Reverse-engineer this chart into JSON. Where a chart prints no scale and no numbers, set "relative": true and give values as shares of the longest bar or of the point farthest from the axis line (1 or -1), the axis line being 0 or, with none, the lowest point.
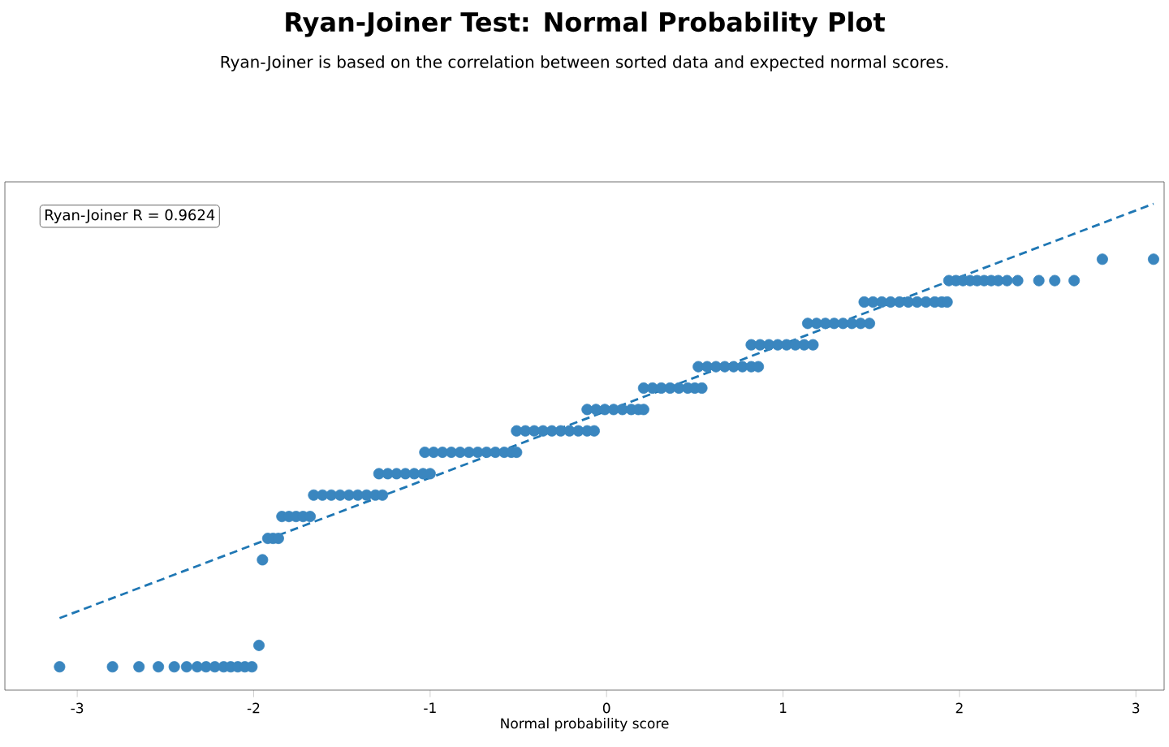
{
  "chart_data": {
    "type": "scatter",
    "title": "Ryan-Joiner Test: Normal Probability Plot",
    "subtitle": "Ryan-Joiner is based on the correlation between sorted data and expected normal scores.",
    "xlabel": "Normal probability score",
    "annotations": [
      "Ryan-Joiner R = 0.9624"
    ],
    "relative": true,
    "marker": "circle",
    "xlim": [
      -3.41,
      3.16
    ],
    "xticks": [
      -3,
      -2,
      -1,
      0,
      1,
      2,
      3
    ],
    "series": [
      {
        "color": "#3a86bf",
        "x": [
          -3.1,
          -2.8,
          -2.65,
          -2.54,
          -2.45,
          -2.38,
          -2.32,
          -2.27,
          -2.22,
          -2.17,
          -2.13,
          -2.09,
          -2.05,
          -2.01,
          -1.97,
          -1.95,
          -1.92,
          -1.89,
          -1.86,
          -1.84,
          -1.8,
          -1.76,
          -1.72,
          -1.68,
          -1.66,
          -1.61,
          -1.56,
          -1.51,
          -1.46,
          -1.41,
          -1.36,
          -1.31,
          -1.27,
          -1.29,
          -1.24,
          -1.19,
          -1.14,
          -1.09,
          -1.04,
          -1.0,
          -1.03,
          -0.98,
          -0.93,
          -0.88,
          -0.83,
          -0.78,
          -0.73,
          -0.68,
          -0.63,
          -0.58,
          -0.54,
          -0.51,
          -0.51,
          -0.46,
          -0.41,
          -0.36,
          -0.31,
          -0.26,
          -0.21,
          -0.16,
          -0.11,
          -0.07,
          -0.11,
          -0.06,
          -0.01,
          0.04,
          0.09,
          0.14,
          0.18,
          0.21,
          0.21,
          0.26,
          0.31,
          0.36,
          0.41,
          0.46,
          0.5,
          0.54,
          0.52,
          0.57,
          0.62,
          0.67,
          0.72,
          0.77,
          0.82,
          0.86,
          0.82,
          0.87,
          0.92,
          0.97,
          1.02,
          1.07,
          1.12,
          1.17,
          1.14,
          1.19,
          1.24,
          1.29,
          1.34,
          1.39,
          1.44,
          1.49,
          1.46,
          1.51,
          1.56,
          1.61,
          1.66,
          1.71,
          1.76,
          1.81,
          1.86,
          1.9,
          1.93,
          1.94,
          1.98,
          2.02,
          2.06,
          2.1,
          2.14,
          2.18,
          2.22,
          2.27,
          2.33,
          2.45,
          2.54,
          2.65,
          2.81,
          3.1
        ],
        "values": [
          0.048,
          0.048,
          0.048,
          0.048,
          0.048,
          0.048,
          0.048,
          0.048,
          0.048,
          0.048,
          0.048,
          0.048,
          0.048,
          0.048,
          0.092,
          0.268,
          0.312,
          0.312,
          0.312,
          0.357,
          0.357,
          0.357,
          0.357,
          0.357,
          0.401,
          0.401,
          0.401,
          0.401,
          0.401,
          0.401,
          0.401,
          0.401,
          0.401,
          0.445,
          0.445,
          0.445,
          0.445,
          0.445,
          0.445,
          0.445,
          0.489,
          0.489,
          0.489,
          0.489,
          0.489,
          0.489,
          0.489,
          0.489,
          0.489,
          0.489,
          0.489,
          0.489,
          0.533,
          0.533,
          0.533,
          0.533,
          0.533,
          0.533,
          0.533,
          0.533,
          0.533,
          0.533,
          0.577,
          0.577,
          0.577,
          0.577,
          0.577,
          0.577,
          0.577,
          0.577,
          0.621,
          0.621,
          0.621,
          0.621,
          0.621,
          0.621,
          0.621,
          0.621,
          0.665,
          0.665,
          0.665,
          0.665,
          0.665,
          0.665,
          0.665,
          0.665,
          0.71,
          0.71,
          0.71,
          0.71,
          0.71,
          0.71,
          0.71,
          0.71,
          0.754,
          0.754,
          0.754,
          0.754,
          0.754,
          0.754,
          0.754,
          0.754,
          0.798,
          0.798,
          0.798,
          0.798,
          0.798,
          0.798,
          0.798,
          0.798,
          0.798,
          0.798,
          0.798,
          0.842,
          0.842,
          0.842,
          0.842,
          0.842,
          0.842,
          0.842,
          0.842,
          0.842,
          0.842,
          0.842,
          0.842,
          0.842,
          0.886,
          0.886
        ]
      },
      {
        "type": "line",
        "marker": "none",
        "color": "#1f77b4",
        "line_style": "dashed",
        "x": [
          -3.1,
          3.1
        ],
        "values": [
          0.148,
          1
        ]
      }
    ]
  }
}
